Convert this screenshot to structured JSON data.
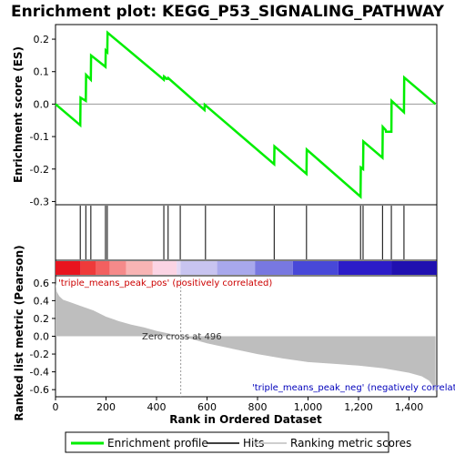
{
  "title": "Enrichment plot: KEGG_P53_SIGNALING_PATHWAY",
  "colors": {
    "enrichment": "#00ee00",
    "hits": "#000000",
    "ranking": "#bebebe",
    "zero_line": "#999999"
  },
  "chart_data": [
    {
      "type": "line",
      "name": "enrichment-panel",
      "ylabel": "Enrichment score (ES)",
      "xlim": [
        0,
        1510
      ],
      "ylim": [
        -0.31,
        0.245
      ],
      "yticks": [
        -0.3,
        -0.2,
        -0.1,
        0.0,
        0.1,
        0.2
      ],
      "ytick_labels": [
        "-0.3",
        "-0.2",
        "-0.1",
        "0.0",
        "0.1",
        "0.2"
      ],
      "series": [
        {
          "name": "Enrichment profile",
          "x": [
            0,
            98,
            99,
            120,
            121,
            140,
            141,
            198,
            199,
            205,
            206,
            429,
            430,
            438,
            439,
            446,
            447,
            590,
            591,
            866,
            867,
            994,
            995,
            1208,
            1209,
            1218,
            1219,
            1295,
            1296,
            1308,
            1309,
            1330,
            1331,
            1380,
            1381,
            1505
          ],
          "y": [
            0.0,
            -0.065,
            0.02,
            0.01,
            0.09,
            0.075,
            0.15,
            0.115,
            0.165,
            0.16,
            0.22,
            0.075,
            0.085,
            0.08,
            0.078,
            0.078,
            0.08,
            -0.018,
            -0.002,
            -0.185,
            -0.13,
            -0.215,
            -0.14,
            -0.285,
            -0.195,
            -0.2,
            -0.115,
            -0.165,
            -0.07,
            -0.08,
            -0.085,
            -0.085,
            0.01,
            -0.025,
            0.082,
            0.0
          ]
        }
      ]
    },
    {
      "type": "hits",
      "name": "hits-panel",
      "positions": [
        98,
        120,
        140,
        198,
        205,
        429,
        446,
        494,
        594,
        866,
        994,
        1208,
        1218,
        1295,
        1330,
        1380
      ]
    },
    {
      "type": "heatmap",
      "name": "rank-colorbar",
      "colors": [
        "#e8141e",
        "#ee3a3a",
        "#f26060",
        "#f58a8a",
        "#f8b4b4",
        "#fbd4e4",
        "#e4d8f4",
        "#c8c4f0",
        "#a8a8ec",
        "#7878e0",
        "#4848d8",
        "#2c1cc8",
        "#2010b0"
      ],
      "boundaries": [
        0,
        100,
        160,
        215,
        280,
        385,
        480,
        495,
        640,
        790,
        940,
        1120,
        1330,
        1510
      ]
    },
    {
      "type": "area",
      "name": "ranking-panel",
      "ylabel": "Ranked list metric (Pearson)",
      "xlabel": "Rank in Ordered Dataset",
      "xlim": [
        0,
        1510
      ],
      "ylim": [
        -0.68,
        0.68
      ],
      "yticks": [
        -0.6,
        -0.4,
        -0.2,
        0.0,
        0.2,
        0.4,
        0.6
      ],
      "ytick_labels": [
        "-0.6",
        "-0.4",
        "-0.2",
        "0.0",
        "0.2",
        "0.4",
        "0.6"
      ],
      "xticks": [
        0,
        200,
        400,
        600,
        800,
        1000,
        1200,
        1400
      ],
      "xtick_labels": [
        "0",
        "200",
        "400",
        "600",
        "800",
        "1,000",
        "1,200",
        "1,400"
      ],
      "x": [
        0,
        5,
        15,
        30,
        60,
        100,
        150,
        200,
        250,
        300,
        350,
        400,
        450,
        496,
        550,
        600,
        700,
        800,
        900,
        1000,
        1100,
        1200,
        1300,
        1400,
        1450,
        1480,
        1495,
        1505
      ],
      "y": [
        0.6,
        0.5,
        0.45,
        0.41,
        0.38,
        0.34,
        0.29,
        0.22,
        0.17,
        0.13,
        0.1,
        0.06,
        0.03,
        0.0,
        -0.04,
        -0.08,
        -0.14,
        -0.2,
        -0.25,
        -0.29,
        -0.31,
        -0.33,
        -0.36,
        -0.41,
        -0.45,
        -0.5,
        -0.56,
        -0.63
      ],
      "annotations": {
        "pos": "'triple_means_peak_pos' (positively correlated)",
        "neg": "'triple_means_peak_neg' (negatively correlated)",
        "zero": "Zero cross at 496"
      }
    }
  ],
  "legend": {
    "items": [
      {
        "label": "Enrichment profile"
      },
      {
        "label": "Hits"
      },
      {
        "label": "Ranking metric scores"
      }
    ]
  }
}
